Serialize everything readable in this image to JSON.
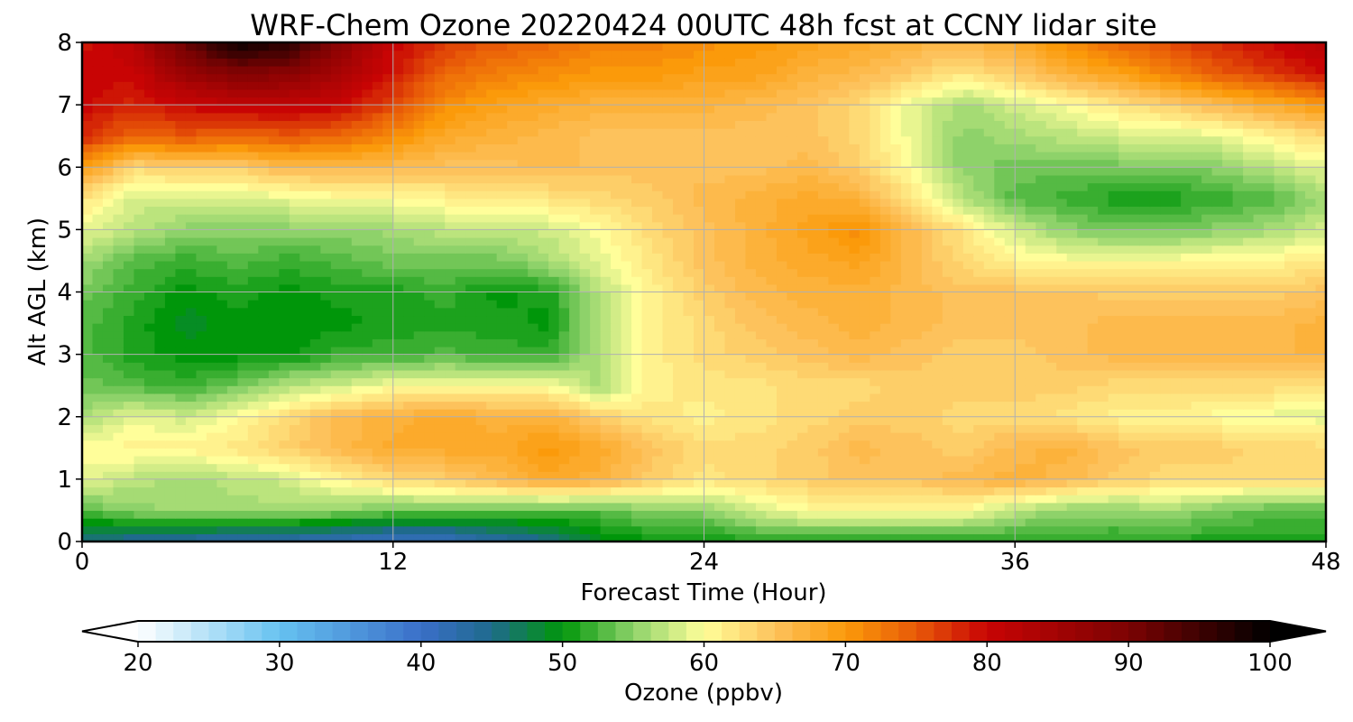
{
  "chart_data": {
    "type": "heatmap",
    "title": "WRF-Chem Ozone  20220424 00UTC 48h fcst at CCNY lidar site",
    "xlabel": "Forecast Time (Hour)",
    "ylabel": "Alt AGL (km)",
    "xlim": [
      0,
      48
    ],
    "ylim": [
      0,
      8
    ],
    "x_ticks": [
      0,
      12,
      24,
      36,
      48
    ],
    "y_ticks": [
      0,
      1,
      2,
      3,
      4,
      5,
      6,
      7,
      8
    ],
    "grid": true,
    "x": [
      0,
      2,
      4,
      6,
      8,
      10,
      12,
      14,
      16,
      18,
      20,
      22,
      24,
      26,
      28,
      30,
      32,
      34,
      36,
      38,
      40,
      42,
      44,
      46,
      48
    ],
    "y": [
      0,
      0.5,
      1,
      1.5,
      2,
      2.5,
      3,
      3.5,
      4,
      4.5,
      5,
      5.5,
      6,
      6.5,
      7,
      7.5,
      8
    ],
    "z": [
      [
        45,
        44,
        43,
        42,
        42,
        41,
        40,
        40,
        43,
        45,
        49,
        50,
        50,
        51,
        51,
        51,
        51,
        51,
        51,
        51,
        51,
        51,
        51,
        51,
        51
      ],
      [
        53,
        55,
        56,
        56,
        56,
        55,
        54,
        54,
        53,
        53,
        53,
        55,
        55,
        58,
        60,
        60,
        60,
        60,
        57,
        55,
        55,
        56,
        54,
        53,
        53
      ],
      [
        59,
        57,
        56,
        57,
        58,
        61,
        63,
        64,
        66,
        68,
        67,
        64,
        62,
        63,
        64,
        65,
        65,
        66,
        67,
        66,
        64,
        63,
        63,
        63,
        63
      ],
      [
        60,
        61,
        61,
        62,
        64,
        66,
        68,
        68,
        68,
        70,
        68,
        65,
        63,
        63,
        64,
        66,
        65,
        64,
        66,
        67,
        65,
        64,
        64,
        63,
        63
      ],
      [
        56,
        59,
        58,
        60,
        63,
        66,
        67,
        68,
        67,
        67,
        64,
        62,
        61,
        62,
        63,
        64,
        64,
        63,
        63,
        62,
        61,
        61,
        60,
        59,
        59
      ],
      [
        54,
        53,
        52,
        54,
        57,
        58,
        60,
        60,
        60,
        60,
        56,
        61,
        62,
        62,
        63,
        63,
        64,
        64,
        64,
        64,
        63,
        63,
        63,
        63,
        62
      ],
      [
        53,
        51,
        50,
        50,
        50,
        52,
        52,
        53,
        52,
        52,
        57,
        61,
        63,
        64,
        65,
        66,
        65,
        64,
        64,
        65,
        66,
        66,
        66,
        66,
        67
      ],
      [
        53,
        51,
        49,
        50,
        50,
        50,
        51,
        51,
        51,
        50,
        57,
        61,
        63,
        65,
        66,
        67,
        66,
        65,
        65,
        65,
        66,
        66,
        66,
        66,
        67
      ],
      [
        54,
        52,
        50,
        51,
        50,
        51,
        51,
        52,
        50,
        51,
        57,
        61,
        64,
        66,
        67,
        67,
        66,
        65,
        65,
        65,
        64,
        64,
        64,
        64,
        65
      ],
      [
        56,
        53,
        52,
        53,
        52,
        53,
        54,
        54,
        54,
        56,
        59,
        62,
        65,
        67,
        68,
        69,
        66,
        63,
        61,
        60,
        60,
        60,
        61,
        61,
        62
      ],
      [
        59,
        57,
        55,
        55,
        55,
        55,
        56,
        57,
        57,
        58,
        60,
        63,
        65,
        67,
        69,
        71,
        66,
        62,
        58,
        55,
        54,
        54,
        55,
        56,
        58
      ],
      [
        62,
        58,
        58,
        58,
        59,
        60,
        60,
        61,
        61,
        62,
        63,
        64,
        66,
        67,
        68,
        67,
        62,
        57,
        53,
        52,
        51,
        51,
        52,
        53,
        56
      ],
      [
        70,
        63,
        64,
        64,
        66,
        66,
        66,
        65,
        65,
        66,
        65,
        65,
        65,
        65,
        66,
        64,
        60,
        55,
        54,
        54,
        54,
        54,
        55,
        57,
        59
      ],
      [
        78,
        74,
        75,
        74,
        75,
        74,
        71,
        68,
        67,
        66,
        65,
        65,
        65,
        65,
        65,
        63,
        59,
        55,
        56,
        57,
        58,
        58,
        59,
        61,
        63
      ],
      [
        80,
        78,
        80,
        81,
        81,
        80,
        76,
        71,
        69,
        68,
        67,
        67,
        67,
        66,
        65,
        63,
        59,
        56,
        58,
        60,
        62,
        64,
        66,
        68,
        70
      ],
      [
        80,
        80,
        86,
        89,
        88,
        84,
        79,
        74,
        72,
        71,
        70,
        70,
        69,
        69,
        67,
        66,
        64,
        62,
        64,
        67,
        69,
        72,
        75,
        77,
        80
      ],
      [
        79,
        82,
        92,
        99,
        97,
        88,
        80,
        77,
        75,
        74,
        72,
        72,
        71,
        70,
        69,
        68,
        67,
        66,
        68,
        71,
        74,
        76,
        78,
        80,
        82
      ]
    ],
    "colorbar": {
      "label": "Ozone  (ppbv)",
      "min": 20,
      "max": 100,
      "ticks": [
        20,
        30,
        40,
        50,
        60,
        70,
        80,
        90,
        100
      ],
      "extend": "both",
      "stops": [
        {
          "v": 20,
          "c": "#ffffff"
        },
        {
          "v": 30,
          "c": "#66c2f0"
        },
        {
          "v": 40,
          "c": "#3a6fc8"
        },
        {
          "v": 45,
          "c": "#1f6a8c"
        },
        {
          "v": 50,
          "c": "#00960a"
        },
        {
          "v": 55,
          "c": "#8ed26a"
        },
        {
          "v": 60,
          "c": "#fffe9a"
        },
        {
          "v": 65,
          "c": "#fdc25c"
        },
        {
          "v": 70,
          "c": "#fb9a0a"
        },
        {
          "v": 75,
          "c": "#e85a08"
        },
        {
          "v": 80,
          "c": "#c80404"
        },
        {
          "v": 90,
          "c": "#7c0303"
        },
        {
          "v": 100,
          "c": "#000000"
        }
      ]
    }
  }
}
